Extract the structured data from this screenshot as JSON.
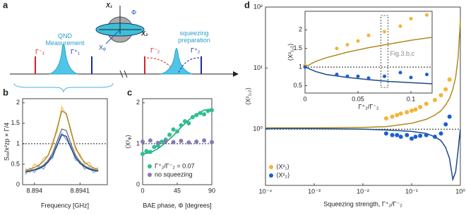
{
  "panel_labels": [
    "a",
    "b",
    "c",
    "d"
  ],
  "diagram": {
    "axis1": "X₁",
    "axis2": "X₂",
    "phase": "Φ",
    "axis_phi": "Xᵩ",
    "qnd": "QND\nMeasurement",
    "squeeze": "squeezing\npreparation",
    "g1m": "Γ⁻₁",
    "g1p": "Γ⁺₁",
    "g2m": "Γ⁻₂",
    "g2p": "Γ⁺₂"
  },
  "chart_data": [
    {
      "type": "line",
      "xlabel": "Frequency [GHz]",
      "ylabel": "Sₓₓ/x²zp × Γ/4",
      "xlim": [
        8.893974,
        8.89416
      ],
      "ylim": [
        0,
        2.1
      ],
      "xticks": [
        8.894,
        8.8941
      ],
      "yticks": [
        0,
        0.5,
        1,
        1.5,
        2
      ],
      "hline": 1,
      "x": [
        8.89398,
        8.89399,
        8.894,
        8.89401,
        8.89402,
        8.89403,
        8.89404,
        8.89405,
        8.89406,
        8.89407,
        8.89408,
        8.89409,
        8.8941,
        8.89411,
        8.89412,
        8.89413,
        8.89414
      ],
      "series": [
        {
          "color": "#f5c770",
          "width": 1.6,
          "values": [
            0.4,
            0.3,
            0.5,
            0.45,
            0.65,
            0.7,
            1.05,
            1.3,
            1.9,
            1.7,
            1.35,
            0.85,
            0.75,
            0.5,
            0.55,
            0.35,
            0.42
          ]
        },
        {
          "color": "#8fb2e6",
          "width": 1.6,
          "values": [
            0.25,
            0.4,
            0.3,
            0.45,
            0.38,
            0.6,
            0.65,
            1.05,
            1.25,
            1.1,
            0.95,
            0.6,
            0.58,
            0.38,
            0.42,
            0.3,
            0.36
          ]
        },
        {
          "color": "#a8862a",
          "width": 1.4,
          "values": [
            0.35,
            0.38,
            0.42,
            0.48,
            0.57,
            0.72,
            0.98,
            1.39,
            1.8,
            1.74,
            1.3,
            0.92,
            0.69,
            0.55,
            0.46,
            0.41,
            0.37
          ]
        },
        {
          "color": "#777777",
          "width": 1.4,
          "values": [
            0.32,
            0.34,
            0.37,
            0.41,
            0.48,
            0.59,
            0.78,
            1.07,
            1.36,
            1.32,
            1.0,
            0.73,
            0.56,
            0.46,
            0.4,
            0.37,
            0.34
          ]
        },
        {
          "color": "#1a3f8a",
          "width": 1.4,
          "values": [
            0.31,
            0.33,
            0.36,
            0.39,
            0.45,
            0.55,
            0.71,
            0.96,
            1.22,
            1.18,
            0.9,
            0.67,
            0.52,
            0.44,
            0.38,
            0.35,
            0.33
          ]
        }
      ]
    },
    {
      "type": "scatter",
      "xlabel": "BAE phase, Φ [degrees]",
      "ylabel": "⟨X²ᵩ⟩",
      "xlim": [
        0,
        90
      ],
      "ylim": [
        0,
        2.1
      ],
      "xticks": [
        0,
        45,
        90
      ],
      "yticks": [
        0,
        1,
        2
      ],
      "hline": 1,
      "legend": "lower right",
      "series": [
        {
          "mode": "line",
          "color": "#1e9a78",
          "x": [
            0,
            10,
            20,
            30,
            40,
            50,
            60,
            70,
            80,
            90
          ],
          "values": [
            0.75,
            0.78,
            0.88,
            1.03,
            1.2,
            1.4,
            1.58,
            1.72,
            1.82,
            1.85
          ]
        },
        {
          "mode": "markers",
          "name": "Γ⁺₂/Γ⁻₂ = 0.07",
          "color": "#2cc08f",
          "x": [
            0,
            5,
            10,
            15,
            20,
            25,
            30,
            35,
            40,
            45,
            50,
            55,
            60,
            65,
            70,
            75,
            80,
            85,
            90
          ],
          "values": [
            0.75,
            0.82,
            0.8,
            0.92,
            0.95,
            1.05,
            1.1,
            1.22,
            1.35,
            1.3,
            1.45,
            1.55,
            1.5,
            1.65,
            1.7,
            1.75,
            1.72,
            1.8,
            1.82
          ]
        },
        {
          "mode": "markers",
          "name": "no squeezing",
          "color": "#8878b8",
          "x": [
            0,
            10,
            20,
            30,
            40,
            50,
            60,
            70,
            80,
            90
          ],
          "values": [
            1.05,
            1.08,
            1.02,
            1.06,
            1.04,
            1.07,
            1.03,
            1.05,
            1.08,
            1.04
          ]
        }
      ]
    },
    {
      "type": "scatter",
      "log": true,
      "xlabel": "Squeezing strength, Γ⁺₂/Γ⁻₂",
      "ylabel": "⟨X²₁,₂⟩",
      "xlim": [
        0.0001,
        1
      ],
      "ylim": [
        0.12,
        100
      ],
      "xticks": [
        {
          "value": 0.0001,
          "label": "10⁻⁴"
        },
        {
          "value": 0.001,
          "label": "10⁻³"
        },
        {
          "value": 0.01,
          "label": "10⁻²"
        },
        {
          "value": 0.1,
          "label": "10⁻¹"
        },
        {
          "value": 1,
          "label": "10⁰"
        }
      ],
      "yticks": [
        {
          "value": 1,
          "label": "10⁰"
        },
        {
          "value": 10,
          "label": "10¹"
        },
        {
          "value": 100,
          "label": "10²"
        }
      ],
      "hline": 1,
      "legend": "lower left",
      "series": [
        {
          "mode": "line",
          "color": "#b08a20",
          "x": [
            0.0001,
            0.001,
            0.01,
            0.03,
            0.1,
            0.2,
            0.3,
            0.4,
            0.5,
            0.6,
            0.7,
            0.8,
            0.9,
            0.95,
            1
          ],
          "values": [
            1.05,
            1.05,
            1.07,
            1.1,
            1.25,
            1.45,
            1.7,
            2.0,
            2.5,
            3.2,
            4.5,
            7,
            15,
            30,
            60
          ]
        },
        {
          "mode": "line",
          "color": "#1a4a8a",
          "x": [
            0.0001,
            0.001,
            0.01,
            0.03,
            0.1,
            0.2,
            0.3,
            0.4,
            0.5,
            0.6,
            0.7,
            0.8,
            0.9,
            0.95,
            1
          ],
          "values": [
            1.02,
            1.02,
            1.0,
            0.97,
            0.92,
            0.85,
            0.75,
            0.65,
            0.5,
            0.33,
            0.15,
            0.2,
            0.45,
            0.7,
            1
          ]
        },
        {
          "mode": "markers",
          "name": "⟨X²₁⟩",
          "color": "#f5b335",
          "x": [
            0.03,
            0.04,
            0.05,
            0.06,
            0.08,
            0.1,
            0.12,
            0.15,
            0.2,
            0.3,
            0.4,
            0.5,
            0.6
          ],
          "values": [
            1.5,
            1.6,
            1.7,
            1.8,
            1.9,
            2.0,
            2.1,
            2.3,
            2.6,
            3.0,
            3.6,
            4.5,
            6.5
          ]
        },
        {
          "mode": "markers",
          "name": "⟨X²₂⟩",
          "color": "#1a5fd0",
          "x": [
            0.03,
            0.04,
            0.05,
            0.06,
            0.08,
            0.1,
            0.12,
            0.15,
            0.2,
            0.3,
            0.4,
            0.5,
            0.6
          ],
          "values": [
            0.85,
            0.8,
            0.8,
            0.75,
            0.8,
            0.7,
            0.75,
            0.78,
            0.8,
            0.75,
            0.85,
            1.2,
            1.6
          ]
        }
      ]
    },
    {
      "type": "scatter",
      "xlabel": "Γ⁺₂/Γ⁻₂",
      "ylabel": "⟨X²₁,₂⟩",
      "xlim": [
        0,
        0.12
      ],
      "ylim": [
        0.3,
        2.5
      ],
      "xticks": [
        0,
        0.05,
        0.1
      ],
      "yticks": [
        0.5,
        1,
        1.5,
        2
      ],
      "hline": 1,
      "annotation": "Fig.3.b,c",
      "annotation_x": 0.075,
      "series": [
        {
          "mode": "line",
          "color": "#b08a20",
          "x": [
            0,
            0.01,
            0.02,
            0.04,
            0.06,
            0.08,
            0.1,
            0.12
          ],
          "values": [
            1,
            1.15,
            1.25,
            1.4,
            1.52,
            1.62,
            1.72,
            1.8
          ]
        },
        {
          "mode": "line",
          "color": "#1a4a8a",
          "x": [
            0,
            0.01,
            0.02,
            0.04,
            0.06,
            0.08,
            0.1,
            0.12
          ],
          "values": [
            1,
            0.88,
            0.8,
            0.72,
            0.66,
            0.61,
            0.58,
            0.55
          ]
        },
        {
          "mode": "markers",
          "color": "#f5b335",
          "x": [
            0,
            0.03,
            0.04,
            0.05,
            0.06,
            0.075,
            0.09,
            0.1,
            0.115
          ],
          "values": [
            1.05,
            1.5,
            1.6,
            1.7,
            1.85,
            1.95,
            2.1,
            2.3,
            2.4
          ]
        },
        {
          "mode": "markers",
          "color": "#1a5fd0",
          "x": [
            0,
            0.03,
            0.04,
            0.05,
            0.06,
            0.075,
            0.09,
            0.1,
            0.115
          ],
          "values": [
            1.0,
            0.8,
            0.75,
            0.75,
            0.7,
            0.75,
            0.85,
            0.72,
            0.8
          ]
        }
      ]
    }
  ]
}
